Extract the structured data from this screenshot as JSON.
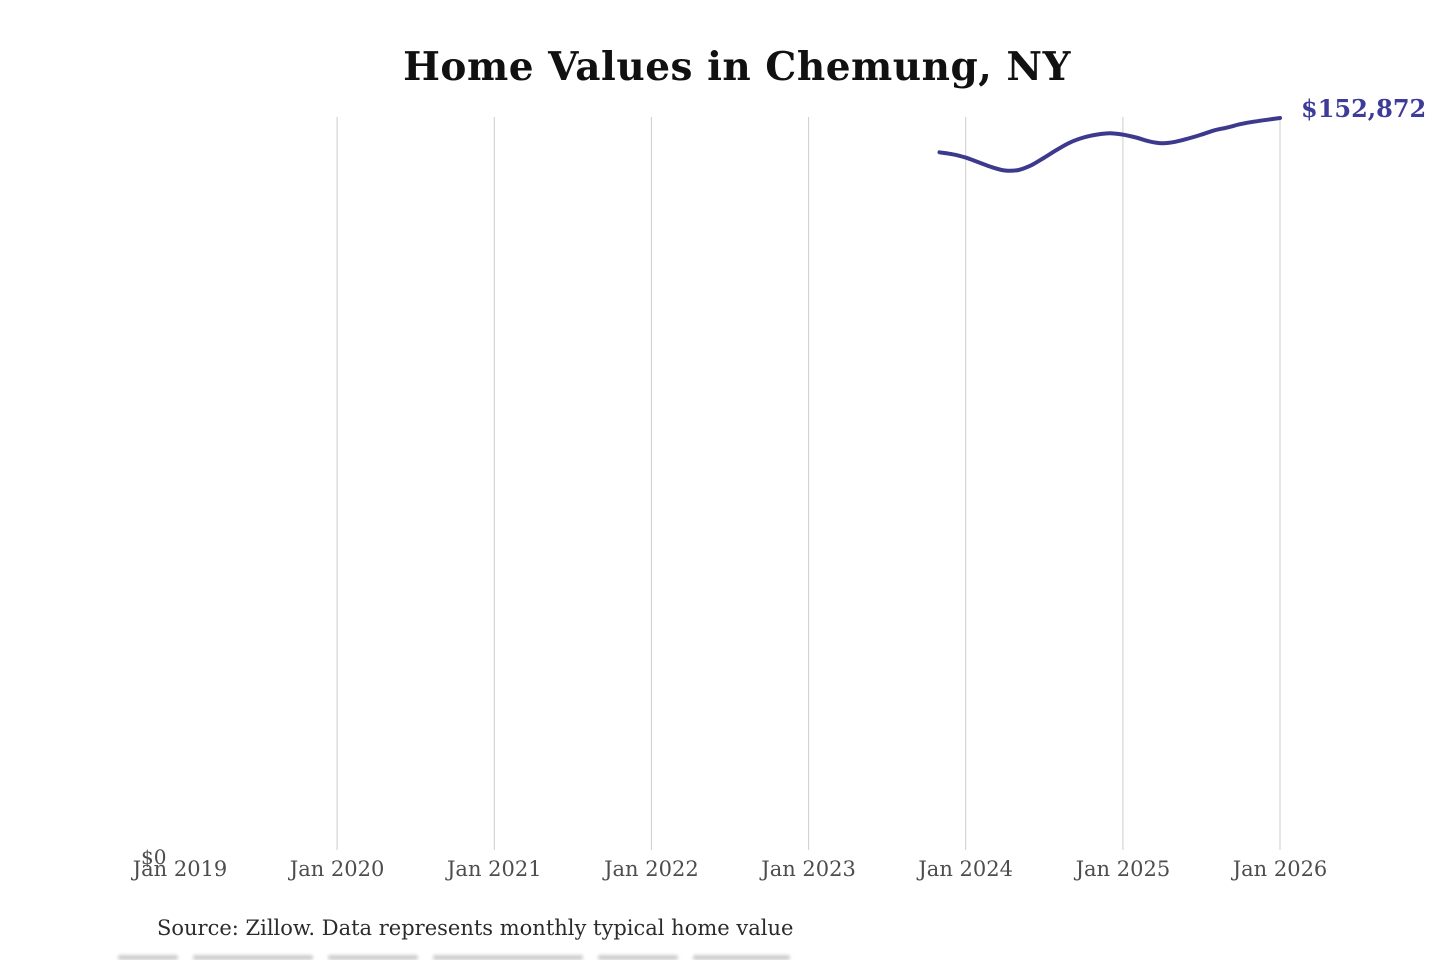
{
  "chart_data": {
    "type": "line",
    "title": "Home Values in Chemung, NY",
    "end_value_label": "$152,872",
    "source_note": "Source: Zillow. Data represents monthly typical home value",
    "y_axis": {
      "zero_label": "$0",
      "min": 0,
      "max": 152872
    },
    "x_axis": {
      "tick_labels": [
        "Jan 2019",
        "Jan 2020",
        "Jan 2021",
        "Jan 2022",
        "Jan 2023",
        "Jan 2024",
        "Jan 2025",
        "Jan 2026"
      ],
      "gridline_labels": [
        "Jan 2020",
        "Jan 2021",
        "Jan 2022",
        "Jan 2023",
        "Jan 2024",
        "Jan 2025",
        "Jan 2026"
      ]
    },
    "series": [
      {
        "name": "Monthly typical home value",
        "months": [
          "Nov 2023",
          "Dec 2023",
          "Jan 2024",
          "Feb 2024",
          "Mar 2024",
          "Apr 2024",
          "May 2024",
          "Jun 2024",
          "Jul 2024",
          "Aug 2024",
          "Sep 2024",
          "Oct 2024",
          "Nov 2024",
          "Dec 2024",
          "Jan 2025",
          "Feb 2025",
          "Mar 2025",
          "Apr 2025",
          "May 2025",
          "Jun 2025",
          "Jul 2025",
          "Aug 2025",
          "Sep 2025",
          "Oct 2025",
          "Nov 2025",
          "Dec 2025",
          "Jan 2026"
        ],
        "values": [
          145700,
          145300,
          144600,
          143600,
          142600,
          141900,
          142000,
          143000,
          144600,
          146300,
          147800,
          148800,
          149400,
          149700,
          149400,
          148800,
          148000,
          147600,
          147900,
          148600,
          149400,
          150300,
          150900,
          151600,
          152100,
          152500,
          152872
        ]
      }
    ],
    "colors": {
      "line": "#3d3a8e",
      "end_label": "#3f3c99",
      "gridline": "#cdcdcd",
      "axis_text": "#4d4d4d",
      "title_text": "#111111",
      "source_text": "#2b2b2b"
    },
    "layout_hints": {
      "grid": "vertical-only",
      "legend": "none",
      "ylim": [
        0,
        152872
      ],
      "end_label_position": "right-of-line-end",
      "note": "data line spans late 2023 through Jan 2026 only"
    }
  }
}
